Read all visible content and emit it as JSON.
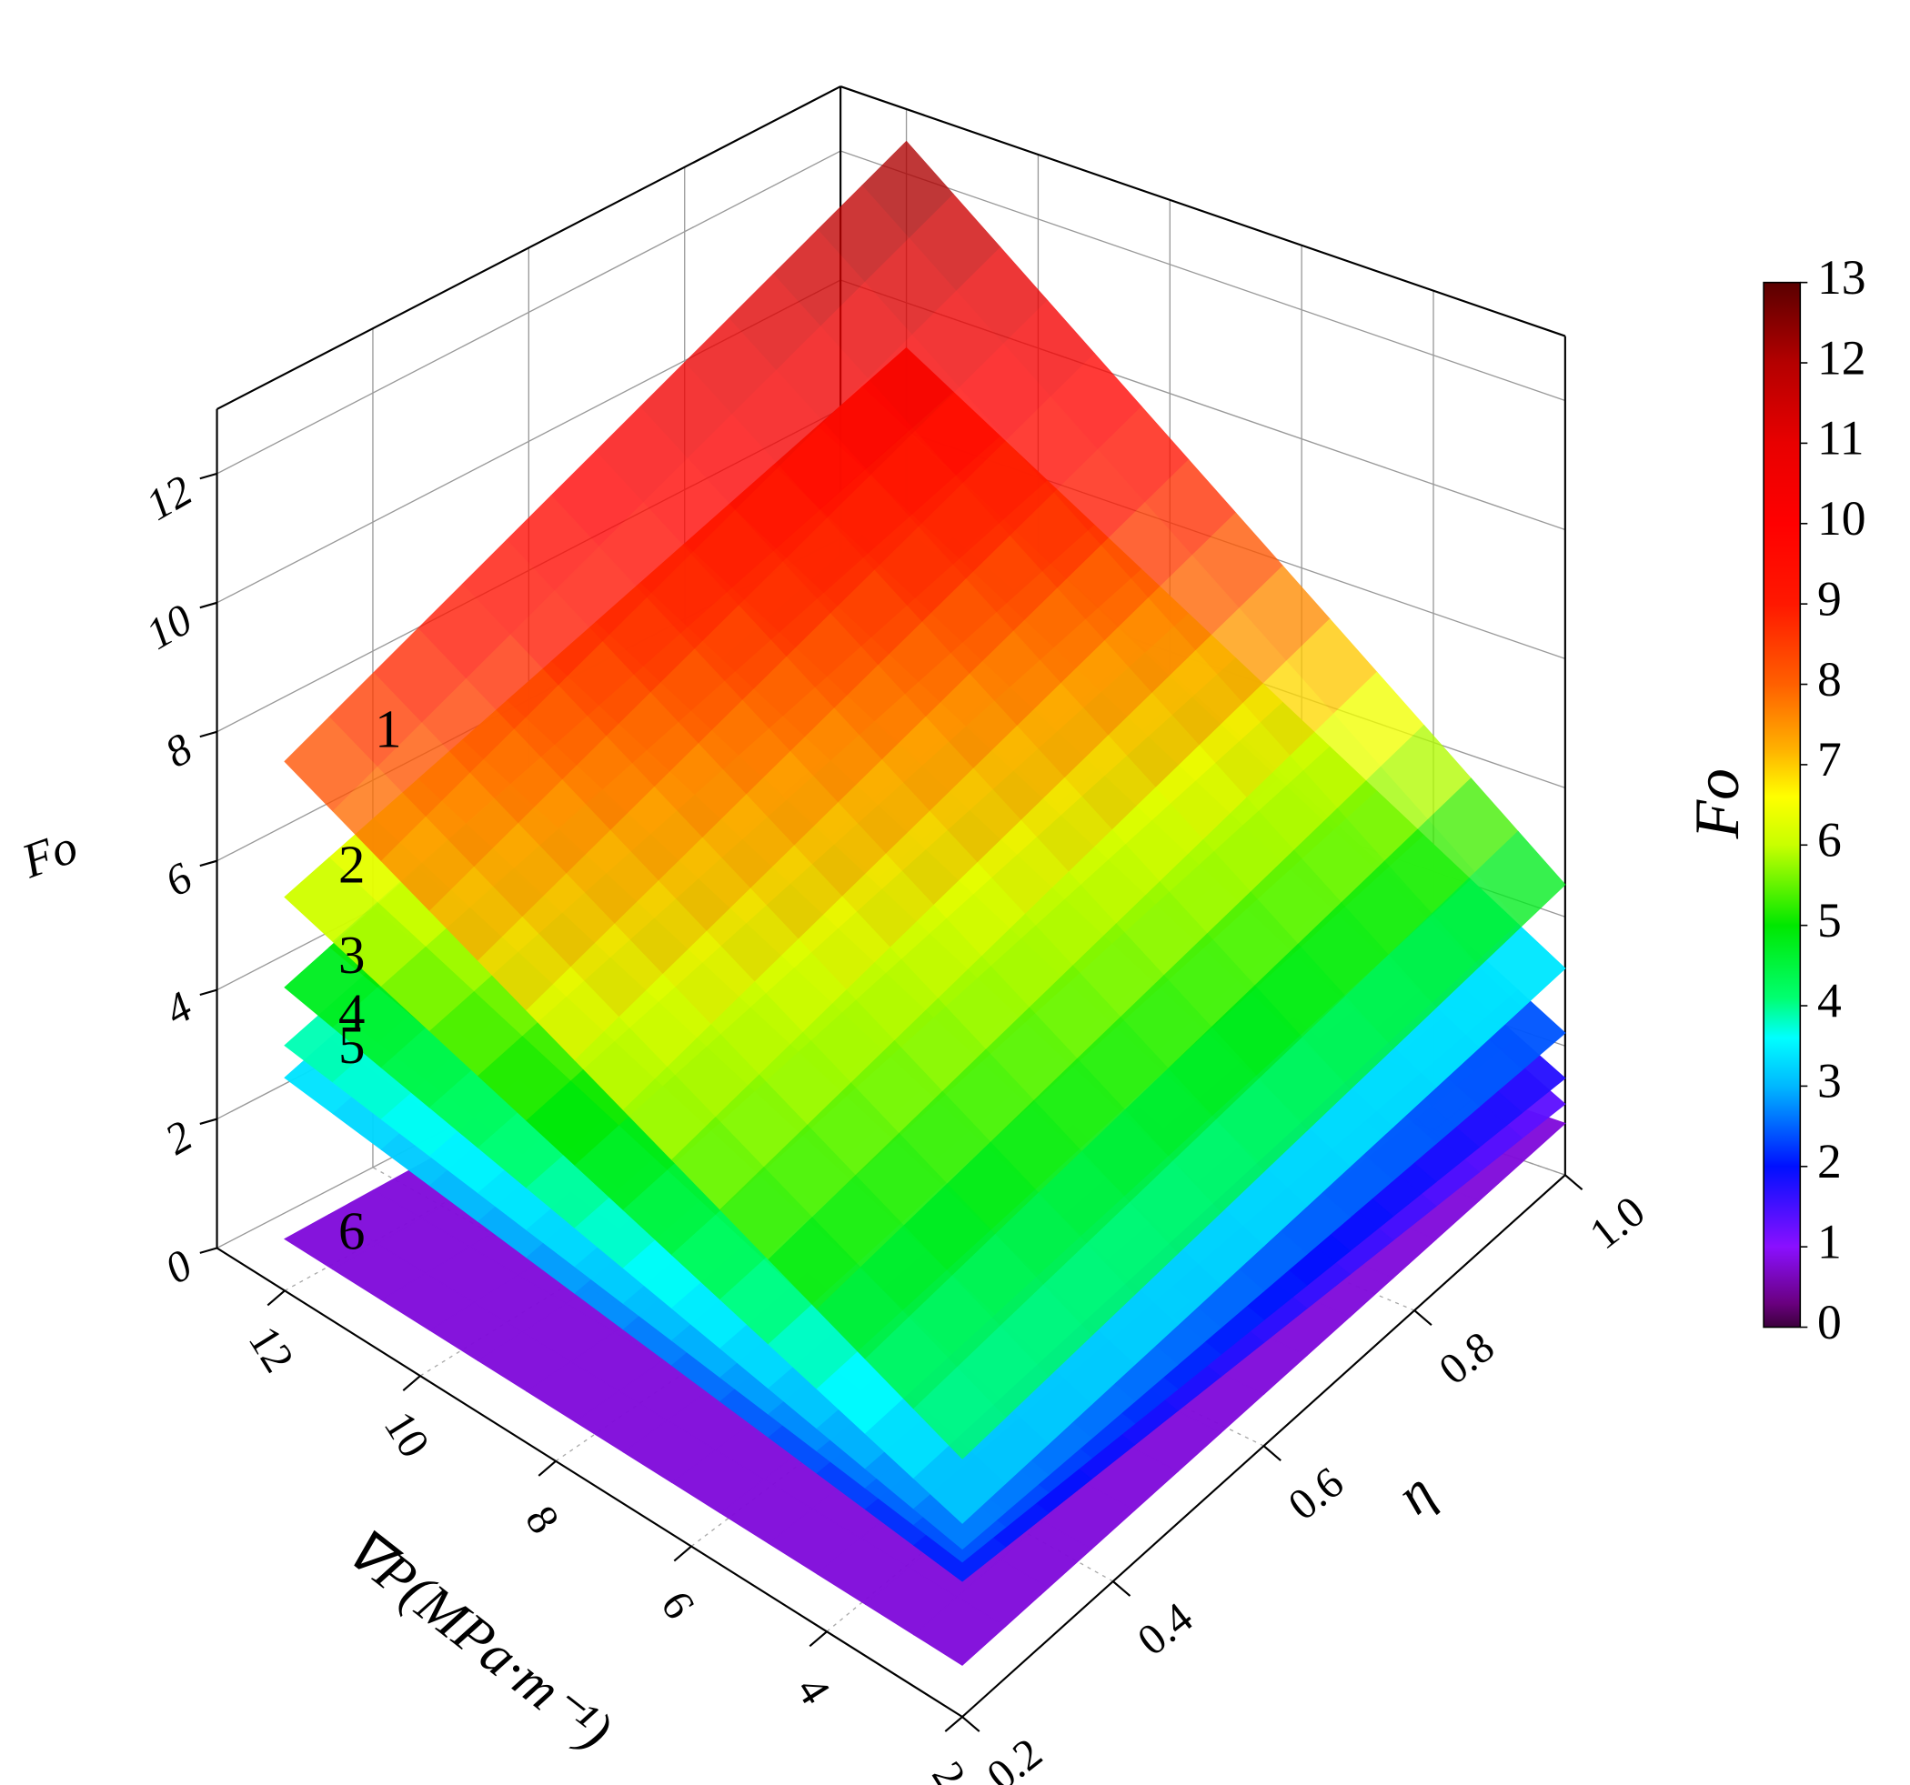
{
  "chart_data": {
    "type": "surface3d",
    "x_label": "∇P(MPa·m⁻¹)",
    "y_label": "η",
    "z_label": "Fo",
    "colorbar_label": "Fo",
    "x": [
      2,
      12
    ],
    "y": [
      0.2,
      1.0
    ],
    "xlim": [
      2,
      13
    ],
    "ylim": [
      0.2,
      1.0
    ],
    "zlim": [
      0,
      13
    ],
    "xticks": [
      2,
      4,
      6,
      8,
      10,
      12
    ],
    "yticks": [
      0.2,
      0.4,
      0.6,
      0.8,
      {
        "value": 1.0,
        "label": "1.0"
      }
    ],
    "zticks": [
      0,
      2,
      4,
      6,
      8,
      10,
      12
    ],
    "colorbar_ticks": [
      0,
      1,
      2,
      3,
      4,
      5,
      6,
      7,
      8,
      9,
      10,
      11,
      12,
      13
    ],
    "grid": true,
    "series": [
      {
        "name": "1",
        "z": [
          [
            4.0,
            4.5
          ],
          [
            8.2,
            12.5
          ]
        ]
      },
      {
        "name": "2",
        "z": [
          [
            3.0,
            3.2
          ],
          [
            6.1,
            9.3
          ]
        ]
      },
      {
        "name": "3",
        "z": [
          [
            2.6,
            2.2
          ],
          [
            4.7,
            8.0
          ]
        ]
      },
      {
        "name": "4",
        "z": [
          [
            2.4,
            1.5
          ],
          [
            3.8,
            7.0
          ]
        ]
      },
      {
        "name": "5",
        "z": [
          [
            2.1,
            1.1
          ],
          [
            3.3,
            6.5
          ]
        ]
      },
      {
        "name": "6",
        "z": [
          [
            0.8,
            0.8
          ],
          [
            0.8,
            0.8
          ]
        ]
      }
    ]
  }
}
